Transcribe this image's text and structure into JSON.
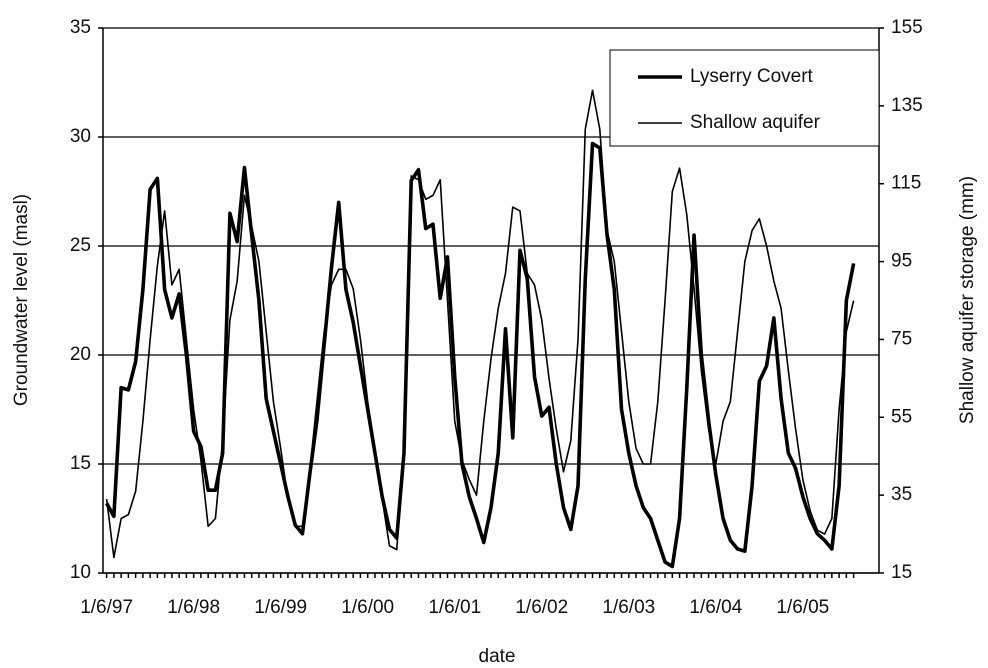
{
  "chart_data": {
    "type": "line",
    "x_label": "date",
    "y_label": "Groundwater level (masl)",
    "y2_label": "Shallow aquifer storage (mm)",
    "categories": [
      "1/6/97",
      null,
      null,
      null,
      null,
      null,
      null,
      null,
      null,
      null,
      null,
      null,
      "1/6/98",
      null,
      null,
      null,
      null,
      null,
      null,
      null,
      null,
      null,
      null,
      null,
      "1/6/99",
      null,
      null,
      null,
      null,
      null,
      null,
      null,
      null,
      null,
      null,
      null,
      "1/6/00",
      null,
      null,
      null,
      null,
      null,
      null,
      null,
      null,
      null,
      null,
      null,
      "1/6/01",
      null,
      null,
      null,
      null,
      null,
      null,
      null,
      null,
      null,
      null,
      null,
      "1/6/02",
      null,
      null,
      null,
      null,
      null,
      null,
      null,
      null,
      null,
      null,
      null,
      "1/6/03",
      null,
      null,
      null,
      null,
      null,
      null,
      null,
      null,
      null,
      null,
      null,
      "1/6/04",
      null,
      null,
      null,
      null,
      null,
      null,
      null,
      null,
      null,
      null,
      null,
      "1/6/05",
      null,
      null,
      null,
      null,
      null,
      null,
      null
    ],
    "series": [
      {
        "name": "Lyserry Covert",
        "color": "#000000",
        "values": [
          13.2,
          12.6,
          18.5,
          18.4,
          19.7,
          23,
          27.6,
          28.1,
          23,
          21.7,
          22.8,
          20,
          16.5,
          15.8,
          13.8,
          13.8,
          15.5,
          26.5,
          25.2,
          28.6,
          25.5,
          22.5,
          18,
          16.5,
          15,
          13.5,
          12.2,
          11.8,
          14.5,
          17,
          20.5,
          24,
          27,
          23,
          21.5,
          19.5,
          17.5,
          15.5,
          13.5,
          12,
          11.6,
          15.5,
          28,
          28.5,
          25.8,
          26,
          22.6,
          24.5,
          19,
          15,
          13.5,
          12.5,
          11.4,
          13,
          15.5,
          21.2,
          16.2,
          24.8,
          23.5,
          19,
          17.2,
          17.6,
          15,
          13,
          12,
          14,
          23.5,
          29.7,
          29.5,
          25.5,
          23,
          17.5,
          15.5,
          14,
          13,
          12.5,
          11.5,
          10.5,
          10.3,
          12.5,
          18.5,
          25.5,
          20,
          17,
          14.5,
          12.5,
          11.5,
          11.1,
          11,
          14,
          18.8,
          19.5,
          21.7,
          18,
          15.5,
          14.8,
          13.5,
          12.5,
          11.8,
          11.5,
          11.1,
          14,
          22.5,
          24.2
        ]
      },
      {
        "name": "Shallow aquifer",
        "color": "#000000",
        "axis": "y2",
        "values": [
          34,
          19,
          29,
          30,
          36,
          54,
          75,
          94,
          108,
          89,
          93,
          75,
          57,
          44,
          27,
          29,
          49,
          80,
          90,
          112,
          104,
          95,
          77,
          59,
          47,
          34,
          27,
          27,
          41,
          59,
          77,
          89,
          93,
          93,
          88,
          75,
          59,
          47,
          34,
          22,
          21,
          47,
          117,
          116,
          111,
          112,
          116,
          85,
          54,
          44,
          39,
          35,
          54,
          70,
          83,
          92,
          109,
          108,
          92,
          89,
          80,
          65,
          52,
          41,
          49,
          75,
          129,
          139,
          129,
          103,
          95,
          77,
          59,
          47,
          43,
          43,
          59,
          85,
          113,
          119,
          107,
          88,
          67,
          52,
          43,
          54,
          59,
          77,
          95,
          103,
          106,
          99,
          90,
          83,
          67,
          52,
          39,
          31,
          26,
          25,
          29,
          57,
          77,
          85
        ]
      }
    ],
    "ylim": [
      10,
      35
    ],
    "yticks": [
      10,
      15,
      20,
      25,
      30,
      35
    ],
    "y2lim": [
      15,
      155
    ],
    "y2ticks": [
      15,
      35,
      55,
      75,
      95,
      115,
      135,
      155
    ],
    "grid": true,
    "legend": "upper right"
  }
}
